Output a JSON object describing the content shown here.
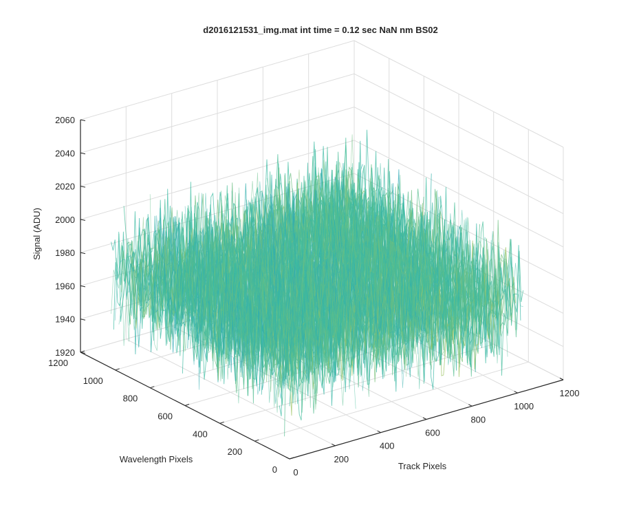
{
  "chart_data": {
    "type": "surface",
    "title": "d2016121531_img.mat int time = 0.12 sec  NaN nm BS02",
    "xlabel": "Track Pixels",
    "ylabel": "Wavelength Pixels",
    "zlabel": "Signal (ADU)",
    "xlim": [
      0,
      1200
    ],
    "ylim": [
      0,
      1200
    ],
    "zlim": [
      1920,
      2060
    ],
    "x_ticks": [
      "0",
      "200",
      "400",
      "600",
      "800",
      "1000",
      "1200"
    ],
    "y_ticks": [
      "0",
      "200",
      "400",
      "600",
      "800",
      "1000",
      "1200"
    ],
    "z_ticks": [
      "1920",
      "1940",
      "1960",
      "1980",
      "2000",
      "2020",
      "2040",
      "2060"
    ],
    "grid": true,
    "surface_extent": {
      "x": [
        0,
        1024
      ],
      "y": [
        0,
        1024
      ]
    },
    "signal_typical_range": [
      1945,
      2010
    ],
    "signal_mean": 1978,
    "colors": {
      "low": "#1e90d0",
      "mid": "#3cbca0",
      "high": "#e6c832"
    }
  }
}
